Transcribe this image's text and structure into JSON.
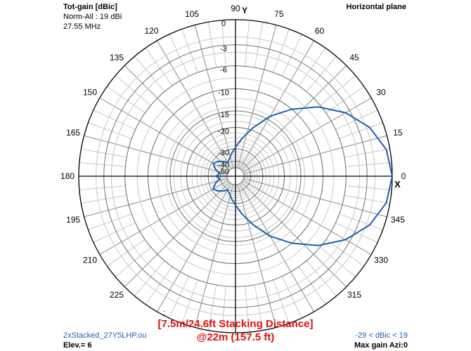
{
  "header": {
    "quantity": "Tot-gain [dBic]",
    "norm": "Norm-All : 19 dBi",
    "frequency": "27.55 MHz",
    "plane": "Horizontal plane"
  },
  "footer": {
    "filename": "2xStacked_27Y5LHP.ou",
    "elevation": "Elev.= 6",
    "range": "-29 < dBic < 19",
    "max_gain": "Max gain Azi:0"
  },
  "annotation": {
    "line1": "[7.5m/24.6ft Stacking Distance]",
    "line2": "@22m (157.5 ft)"
  },
  "axes": {
    "y_mark": "Y",
    "x_mark": "X",
    "top_colon": ":"
  },
  "colors": {
    "pattern": "#1f5fb0",
    "grid": "#000000",
    "annotation": "#e01010"
  },
  "chart_data": {
    "type": "polar",
    "angle_ticks": [
      "0",
      "15",
      "30",
      "45",
      "60",
      "75",
      "90",
      "105",
      "120",
      "135",
      "150",
      "165",
      "180",
      "195",
      "210",
      "225",
      "315",
      "330",
      "345"
    ],
    "radial_ticks": [
      "0",
      "-3",
      "-6",
      "-10",
      "-15",
      "-20",
      "-30",
      "-40",
      "-50"
    ],
    "radial_tick_values": [
      0,
      -3,
      -6,
      -10,
      -15,
      -20,
      -30,
      -40,
      -50
    ],
    "series": [
      {
        "azimuth_deg": [
          0,
          10,
          20,
          30,
          40,
          50,
          60,
          70,
          80,
          90,
          100,
          110,
          120,
          130,
          140,
          150,
          160,
          170,
          180,
          190,
          200,
          210,
          220,
          230,
          240,
          250,
          260,
          270,
          280,
          290,
          300,
          310,
          320,
          330,
          340,
          350,
          360
        ],
        "gain_db": [
          0,
          -0.4,
          -1.6,
          -3.6,
          -6.4,
          -10,
          -14,
          -19,
          -24,
          -29,
          -33,
          -37,
          -39,
          -36,
          -33,
          -31,
          -34,
          -39,
          -36,
          -39,
          -34,
          -31,
          -33,
          -36,
          -39,
          -37,
          -33,
          -29,
          -24,
          -19,
          -14,
          -10,
          -6.4,
          -3.6,
          -1.6,
          -0.4,
          0
        ]
      }
    ]
  }
}
